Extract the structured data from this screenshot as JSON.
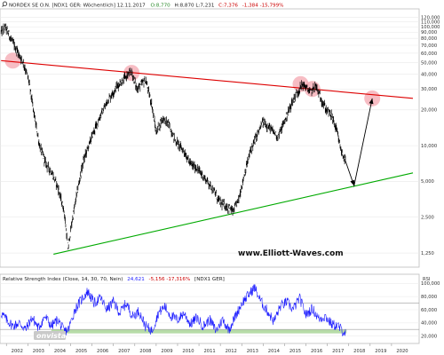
{
  "header": {
    "icon": "magnifier-icon",
    "title": "NORDEX SE O.N. [NDX1 GER: Wöchentlich] 12.11.2017",
    "o": "O:8,770",
    "hl": "H:8,870 L:7,231",
    "c": "C:7,376",
    "chg": "-1,384 -15,799%",
    "colors": {
      "o": "#2a8a2a",
      "c": "#cc0000"
    }
  },
  "watermark": "www.Elliott-Waves.com",
  "rsi_header": "Relative Strength Index (Close, 14, 30, 70, Nein)",
  "rsi_value": "24,621",
  "rsi_change": "-5,156 -17,316%",
  "rsi_symbol": "[NDX1 GER]",
  "rsi_panel_label": "RSI",
  "logo_text": "onvista",
  "chart_data": [
    {
      "type": "line",
      "scale": "log",
      "xlim": [
        2001.7,
        2021.0
      ],
      "ylim": [
        1.0,
        130.0
      ],
      "x_ticks": [
        "2002",
        "2003",
        "2004",
        "2005",
        "2006",
        "2007",
        "2008",
        "2009",
        "2010",
        "2011",
        "2012",
        "2013",
        "2014",
        "2015",
        "2016",
        "2017",
        "2018",
        "2019",
        "2020"
      ],
      "y_ticks": [
        1.25,
        2.5,
        5,
        10,
        20,
        30,
        40,
        50,
        60,
        70,
        80,
        90,
        100,
        110,
        120
      ],
      "y_tick_labels": [
        "1,250",
        "2,500",
        "5,000",
        "10,000",
        "20,000",
        "30,000",
        "40,000",
        "50,000",
        "60,000",
        "70,000",
        "80,000",
        "90,000",
        "100,000",
        "110,000",
        "120,000"
      ],
      "price": {
        "color": "#000000",
        "keypoints": [
          [
            2001.75,
            90
          ],
          [
            2001.95,
            100
          ],
          [
            2002.2,
            80
          ],
          [
            2002.45,
            65
          ],
          [
            2002.8,
            50
          ],
          [
            2003.05,
            35
          ],
          [
            2003.3,
            18
          ],
          [
            2003.55,
            10
          ],
          [
            2003.85,
            7
          ],
          [
            2004.1,
            6
          ],
          [
            2004.4,
            4.5
          ],
          [
            2004.7,
            2.8
          ],
          [
            2004.88,
            1.35
          ],
          [
            2005.05,
            2.2
          ],
          [
            2005.3,
            4
          ],
          [
            2005.6,
            7.5
          ],
          [
            2006.0,
            12
          ],
          [
            2006.4,
            18
          ],
          [
            2006.8,
            25
          ],
          [
            2007.2,
            32
          ],
          [
            2007.6,
            38
          ],
          [
            2007.85,
            42
          ],
          [
            2008.1,
            30
          ],
          [
            2008.5,
            36
          ],
          [
            2008.8,
            22
          ],
          [
            2009.0,
            13
          ],
          [
            2009.3,
            17
          ],
          [
            2009.6,
            15
          ],
          [
            2009.9,
            11
          ],
          [
            2010.3,
            9
          ],
          [
            2010.6,
            7
          ],
          [
            2010.9,
            6.5
          ],
          [
            2011.2,
            5.5
          ],
          [
            2011.6,
            4.5
          ],
          [
            2011.9,
            3.5
          ],
          [
            2012.1,
            3.2
          ],
          [
            2012.4,
            3.0
          ],
          [
            2012.6,
            2.8
          ],
          [
            2012.85,
            3.5
          ],
          [
            2013.1,
            5.5
          ],
          [
            2013.4,
            9
          ],
          [
            2013.7,
            12
          ],
          [
            2014.0,
            16
          ],
          [
            2014.3,
            14
          ],
          [
            2014.7,
            12
          ],
          [
            2015.0,
            16
          ],
          [
            2015.3,
            22
          ],
          [
            2015.6,
            28
          ],
          [
            2015.85,
            33
          ],
          [
            2016.0,
            31
          ],
          [
            2016.2,
            28
          ],
          [
            2016.45,
            32
          ],
          [
            2016.7,
            25
          ],
          [
            2016.95,
            20
          ],
          [
            2017.2,
            18
          ],
          [
            2017.45,
            13
          ],
          [
            2017.65,
            9
          ],
          [
            2017.85,
            7.4
          ]
        ]
      },
      "trendlines": [
        {
          "name": "",
          "color": "#dd0000",
          "points": [
            [
              2001.75,
              52
            ],
            [
              2021.0,
              25
            ]
          ]
        },
        {
          "name": "",
          "color": "#00aa00",
          "points": [
            [
              2004.2,
              1.22
            ],
            [
              2021.0,
              5.9
            ]
          ]
        }
      ],
      "projection": {
        "color": "#000000",
        "points": [
          [
            2017.85,
            7.4
          ],
          [
            2018.25,
            4.6
          ],
          [
            2019.1,
            25
          ]
        ]
      },
      "highlights": [
        {
          "x": 2002.3,
          "y": 52
        },
        {
          "x": 2007.85,
          "y": 41
        },
        {
          "x": 2015.75,
          "y": 33
        },
        {
          "x": 2016.3,
          "y": 30
        },
        {
          "x": 2019.1,
          "y": 25
        }
      ]
    },
    {
      "type": "line",
      "xlim": [
        2001.7,
        2021.0
      ],
      "ylim": [
        10,
        110
      ],
      "y_ticks": [
        20,
        40,
        60,
        80,
        100
      ],
      "y_tick_labels": [
        "20,000",
        "40,000",
        "60,000",
        "80,000",
        "100,000"
      ],
      "levels": [
        30,
        70
      ],
      "level_color": "#9c9c9c",
      "oversold_band": {
        "x": [
          2004.1,
          2017.9
        ],
        "y": [
          24,
          30
        ],
        "color": "#b7dca8"
      },
      "rsi": {
        "color": "#1a1aff",
        "keypoints": [
          [
            2001.75,
            55
          ],
          [
            2002.0,
            45
          ],
          [
            2002.3,
            35
          ],
          [
            2002.6,
            40
          ],
          [
            2002.9,
            30
          ],
          [
            2003.2,
            48
          ],
          [
            2003.5,
            32
          ],
          [
            2003.8,
            50
          ],
          [
            2004.1,
            35
          ],
          [
            2004.4,
            45
          ],
          [
            2004.7,
            27
          ],
          [
            2004.9,
            30
          ],
          [
            2005.2,
            60
          ],
          [
            2005.5,
            75
          ],
          [
            2005.8,
            88
          ],
          [
            2006.1,
            70
          ],
          [
            2006.4,
            78
          ],
          [
            2006.7,
            60
          ],
          [
            2007.0,
            72
          ],
          [
            2007.3,
            55
          ],
          [
            2007.6,
            70
          ],
          [
            2007.9,
            50
          ],
          [
            2008.2,
            58
          ],
          [
            2008.5,
            35
          ],
          [
            2008.8,
            28
          ],
          [
            2009.1,
            55
          ],
          [
            2009.4,
            65
          ],
          [
            2009.7,
            50
          ],
          [
            2010.0,
            45
          ],
          [
            2010.3,
            55
          ],
          [
            2010.6,
            38
          ],
          [
            2010.9,
            48
          ],
          [
            2011.2,
            35
          ],
          [
            2011.5,
            45
          ],
          [
            2011.8,
            28
          ],
          [
            2012.1,
            45
          ],
          [
            2012.4,
            30
          ],
          [
            2012.7,
            50
          ],
          [
            2013.0,
            70
          ],
          [
            2013.3,
            82
          ],
          [
            2013.6,
            94
          ],
          [
            2013.9,
            72
          ],
          [
            2014.2,
            58
          ],
          [
            2014.5,
            42
          ],
          [
            2014.8,
            65
          ],
          [
            2015.1,
            72
          ],
          [
            2015.4,
            60
          ],
          [
            2015.7,
            78
          ],
          [
            2016.0,
            52
          ],
          [
            2016.3,
            62
          ],
          [
            2016.6,
            46
          ],
          [
            2016.9,
            50
          ],
          [
            2017.2,
            38
          ],
          [
            2017.5,
            35
          ],
          [
            2017.7,
            28
          ],
          [
            2017.85,
            24.6
          ]
        ]
      }
    }
  ]
}
